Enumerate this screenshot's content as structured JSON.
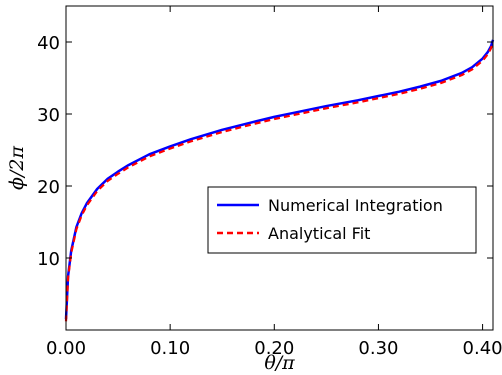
{
  "chart_data": {
    "type": "line",
    "title": "",
    "xlabel": "θ/π",
    "ylabel": "ϕ/2π",
    "xlim": [
      0.0,
      0.41
    ],
    "ylim": [
      0,
      45
    ],
    "x_ticks": [
      0.0,
      0.1,
      0.2,
      0.3,
      0.4
    ],
    "x_tick_labels": [
      "0.00",
      "0.10",
      "0.20",
      "0.30",
      "0.40"
    ],
    "y_ticks": [
      10,
      20,
      30,
      40
    ],
    "y_tick_labels": [
      "10",
      "20",
      "30",
      "40"
    ],
    "grid": false,
    "legend_position": "center-right",
    "series": [
      {
        "name": "Numerical Integration",
        "color": "#0000ff",
        "style": "solid",
        "x": [
          0.0,
          0.002,
          0.005,
          0.01,
          0.015,
          0.02,
          0.03,
          0.04,
          0.05,
          0.06,
          0.08,
          0.1,
          0.12,
          0.15,
          0.18,
          0.2,
          0.22,
          0.25,
          0.28,
          0.3,
          0.32,
          0.34,
          0.36,
          0.38,
          0.39,
          0.4,
          0.405,
          0.408,
          0.41
        ],
        "y": [
          1.5,
          7.5,
          11.0,
          14.3,
          16.2,
          17.6,
          19.6,
          21.0,
          22.0,
          22.9,
          24.4,
          25.5,
          26.5,
          27.8,
          28.9,
          29.6,
          30.2,
          31.1,
          31.9,
          32.5,
          33.1,
          33.8,
          34.6,
          35.7,
          36.5,
          37.7,
          38.6,
          39.4,
          40.3
        ]
      },
      {
        "name": "Analytical Fit",
        "color": "#ff0000",
        "style": "dashed",
        "x": [
          0.0,
          0.002,
          0.005,
          0.01,
          0.015,
          0.02,
          0.03,
          0.04,
          0.05,
          0.06,
          0.08,
          0.1,
          0.12,
          0.15,
          0.18,
          0.2,
          0.22,
          0.25,
          0.28,
          0.3,
          0.32,
          0.34,
          0.36,
          0.38,
          0.39,
          0.4,
          0.405,
          0.408,
          0.41
        ],
        "y": [
          1.2,
          7.2,
          10.7,
          14.0,
          15.9,
          17.3,
          19.3,
          20.7,
          21.7,
          22.6,
          24.1,
          25.2,
          26.2,
          27.5,
          28.6,
          29.3,
          29.9,
          30.8,
          31.6,
          32.2,
          32.8,
          33.5,
          34.3,
          35.4,
          36.2,
          37.4,
          38.3,
          39.1,
          40.0
        ]
      }
    ]
  }
}
